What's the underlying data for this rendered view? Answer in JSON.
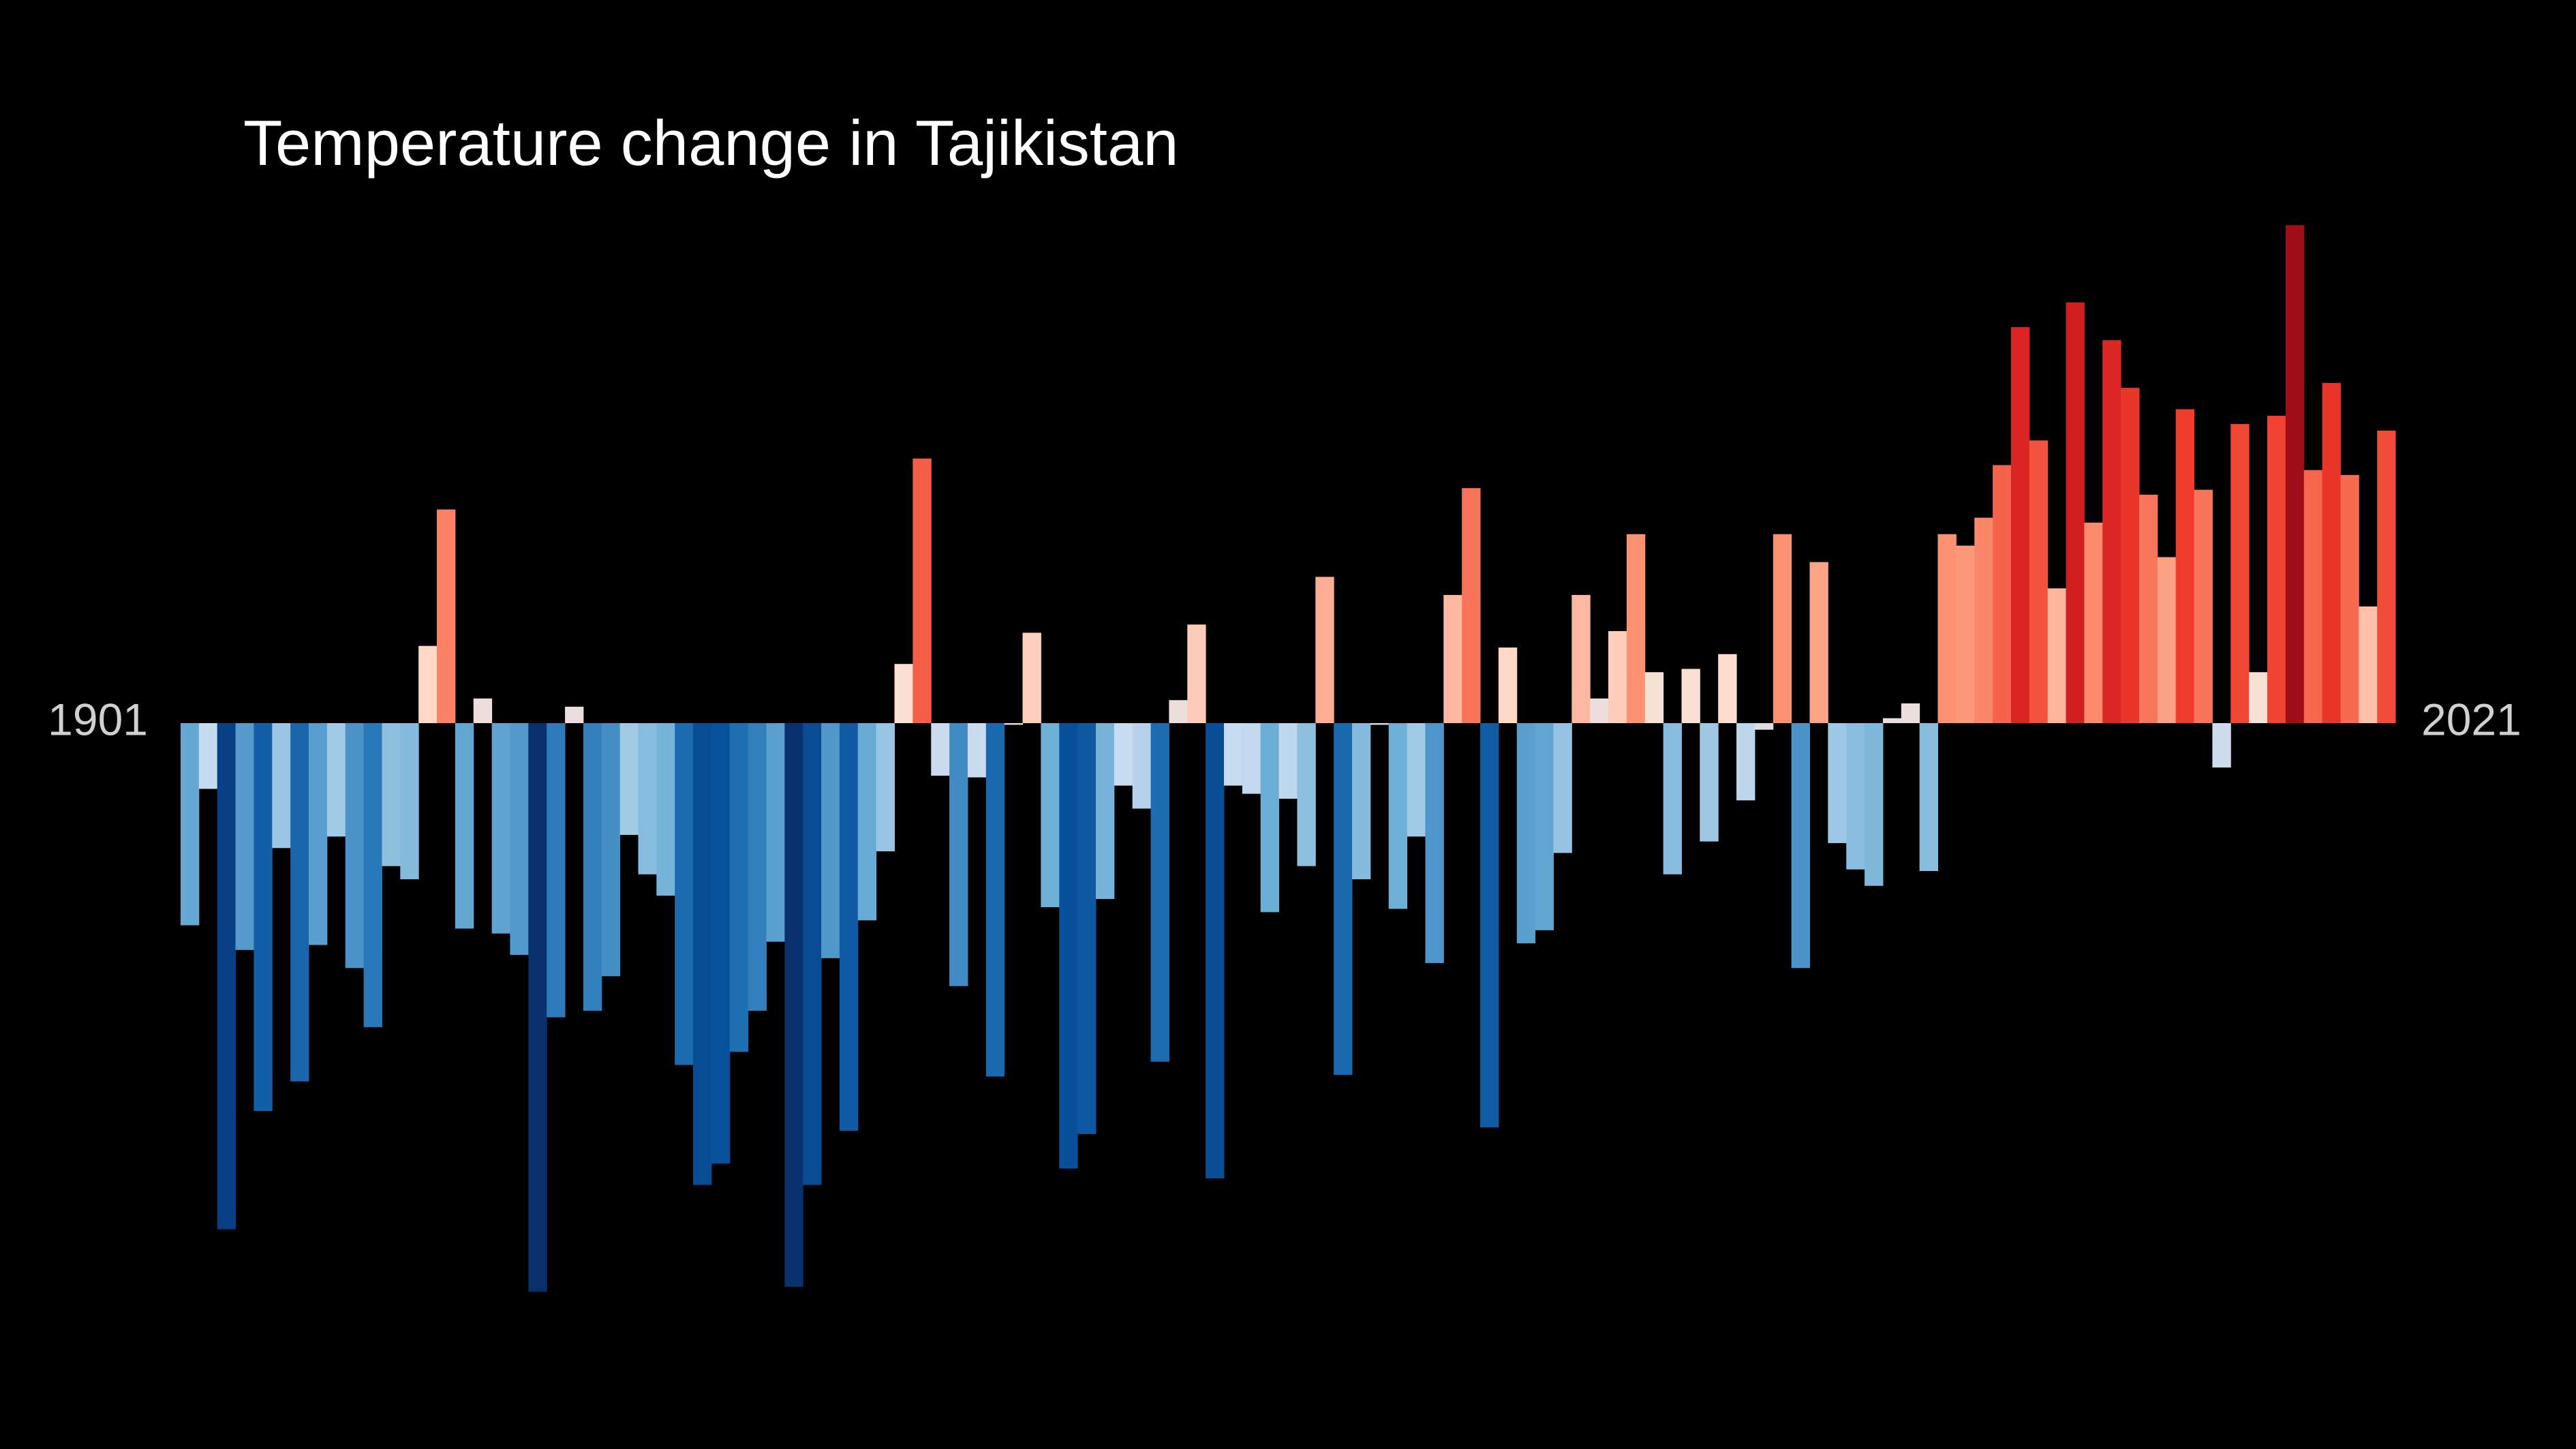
{
  "chart_data": {
    "type": "bar",
    "title": "Temperature change in Tajikistan",
    "categories": [
      "1901",
      null,
      null,
      null,
      null,
      null,
      null,
      null,
      null,
      null,
      null,
      null,
      null,
      null,
      null,
      null,
      null,
      null,
      null,
      null,
      null,
      null,
      null,
      null,
      null,
      null,
      null,
      null,
      null,
      null,
      null,
      null,
      null,
      null,
      null,
      null,
      null,
      null,
      null,
      null,
      null,
      null,
      null,
      null,
      null,
      null,
      null,
      null,
      null,
      null,
      null,
      null,
      null,
      null,
      null,
      null,
      null,
      null,
      null,
      null,
      null,
      null,
      null,
      null,
      null,
      null,
      null,
      null,
      null,
      null,
      null,
      null,
      null,
      null,
      null,
      null,
      null,
      null,
      null,
      null,
      null,
      null,
      null,
      null,
      null,
      null,
      null,
      null,
      null,
      null,
      null,
      null,
      null,
      null,
      null,
      null,
      null,
      null,
      null,
      null,
      null,
      null,
      null,
      null,
      null,
      null,
      null,
      null,
      null,
      null,
      null,
      null,
      null,
      null,
      null,
      null,
      null,
      null,
      null,
      null,
      "2021"
    ],
    "values": [
      -1.23,
      -0.4,
      -3.08,
      -1.38,
      -2.36,
      -0.76,
      -2.18,
      -1.35,
      -0.69,
      -1.49,
      -1.85,
      -0.87,
      -0.95,
      0.47,
      1.3,
      -1.25,
      0.15,
      -1.28,
      -1.41,
      -3.46,
      -1.79,
      0.1,
      -1.75,
      -1.54,
      -0.68,
      -0.92,
      -1.05,
      -2.08,
      -2.81,
      -2.68,
      -2.0,
      -1.75,
      -1.33,
      -3.43,
      -2.81,
      -1.43,
      -2.48,
      -1.2,
      -0.78,
      0.36,
      1.61,
      -0.32,
      -1.6,
      -0.33,
      -2.15,
      -0.01,
      0.55,
      -1.12,
      -2.71,
      -2.5,
      -1.07,
      -0.38,
      -0.52,
      -2.06,
      0.14,
      0.6,
      -2.77,
      -0.38,
      -0.43,
      -1.15,
      -0.46,
      -0.87,
      0.89,
      -2.14,
      -0.95,
      -0.01,
      -1.13,
      -0.69,
      -1.46,
      0.78,
      1.43,
      -2.46,
      0.46,
      -1.34,
      -1.26,
      -0.79,
      0.78,
      0.15,
      0.56,
      1.15,
      0.31,
      -0.92,
      0.33,
      -0.72,
      0.42,
      -0.47,
      -0.04,
      1.15,
      -1.49,
      0.98,
      -0.73,
      -0.89,
      -0.99,
      0.03,
      0.12,
      -0.9,
      1.15,
      1.08,
      1.25,
      1.57,
      2.41,
      1.72,
      0.82,
      2.56,
      1.22,
      2.33,
      2.04,
      1.39,
      1.01,
      1.91,
      1.42,
      -0.27,
      1.82,
      0.31,
      1.87,
      3.03,
      1.54,
      2.07,
      1.51,
      0.71,
      1.78
    ],
    "colors": [
      "#08306b",
      "#08519c",
      "#2171b5",
      "#6baed6",
      "#c6dbef",
      "#fee0d2",
      "#fc9272",
      "#ef3b2c",
      "#cb181d",
      "#67000d"
    ],
    "ylim": [
      -4.4,
      4.4
    ]
  }
}
